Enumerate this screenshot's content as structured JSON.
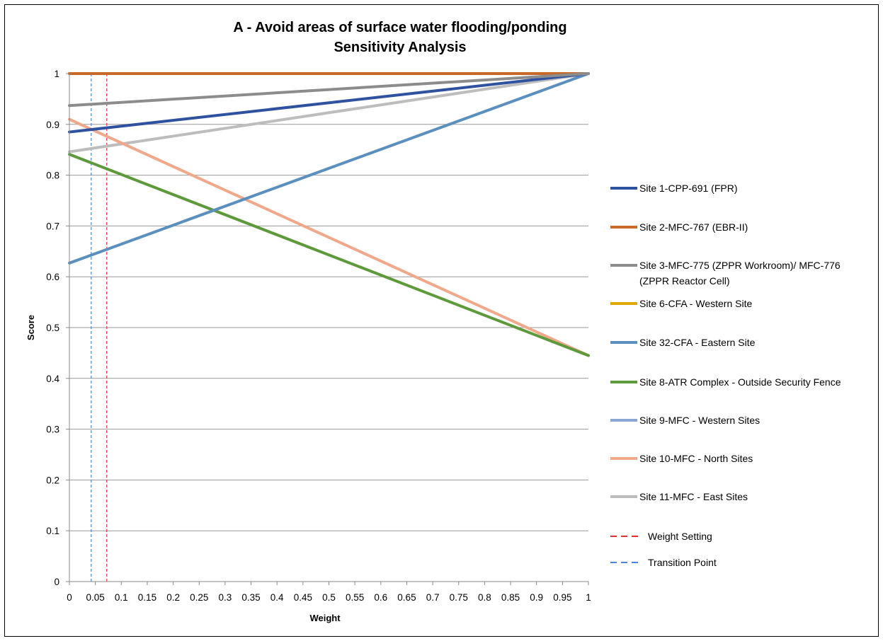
{
  "chart_data": {
    "type": "line",
    "title": "A - Avoid areas of surface water flooding/ponding",
    "subtitle": "Sensitivity Analysis",
    "xlabel": "Weight",
    "ylabel": "Score",
    "xlim": [
      0,
      1
    ],
    "ylim": [
      0,
      1
    ],
    "x_ticks": [
      "0",
      "0.05",
      "0.1",
      "0.15",
      "0.2",
      "0.25",
      "0.3",
      "0.35",
      "0.4",
      "0.45",
      "0.5",
      "0.55",
      "0.6",
      "0.65",
      "0.7",
      "0.75",
      "0.8",
      "0.85",
      "0.9",
      "0.95",
      "1"
    ],
    "y_ticks": [
      "0",
      "0.1",
      "0.2",
      "0.3",
      "0.4",
      "0.5",
      "0.6",
      "0.7",
      "0.8",
      "0.9",
      "1"
    ],
    "grid": "horizontal",
    "legend_position": "right",
    "series": [
      {
        "name": "Site 1-CPP-691 (FPR)",
        "color": "#2f52a0",
        "x": [
          0,
          1
        ],
        "y": [
          0.885,
          1.0
        ]
      },
      {
        "name": "Site 2-MFC-767 (EBR-II)",
        "color": "#c8692a",
        "x": [
          0,
          1
        ],
        "y": [
          1.0,
          1.0
        ]
      },
      {
        "name": "Site 3-MFC-775 (ZPPR Workroom)/ MFC-776 (ZPPR Reactor Cell)",
        "color": "#8c8c8c",
        "x": [
          0,
          1
        ],
        "y": [
          0.937,
          1.0
        ]
      },
      {
        "name": "Site 6-CFA - Western Site",
        "color": "#e0a800",
        "x": [
          0,
          1
        ],
        "y": [
          1.0,
          1.0
        ]
      },
      {
        "name": "Site 32-CFA - Eastern Site",
        "color": "#5b8fbe",
        "x": [
          0,
          1
        ],
        "y": [
          0.627,
          1.0
        ]
      },
      {
        "name": "Site 8-ATR Complex - Outside Security Fence",
        "color": "#5e9a3b",
        "x": [
          0,
          1
        ],
        "y": [
          0.841,
          0.445
        ]
      },
      {
        "name": "Site 9-MFC - Western Sites",
        "color": "#8aa6d4",
        "x": [
          0,
          1
        ],
        "y": [
          1.0,
          1.0
        ]
      },
      {
        "name": "Site 10-MFC - North Sites",
        "color": "#f0a88a",
        "x": [
          0,
          1
        ],
        "y": [
          0.91,
          0.445
        ]
      },
      {
        "name": "Site 11-MFC - East Sites",
        "color": "#bdbdbd",
        "x": [
          0,
          1
        ],
        "y": [
          0.846,
          1.0
        ]
      }
    ],
    "reference_lines": [
      {
        "name": "Weight Setting",
        "color": "#e03030",
        "x": 0.072
      },
      {
        "name": "Transition Point",
        "color": "#4a86d8",
        "x": 0.042
      }
    ]
  }
}
